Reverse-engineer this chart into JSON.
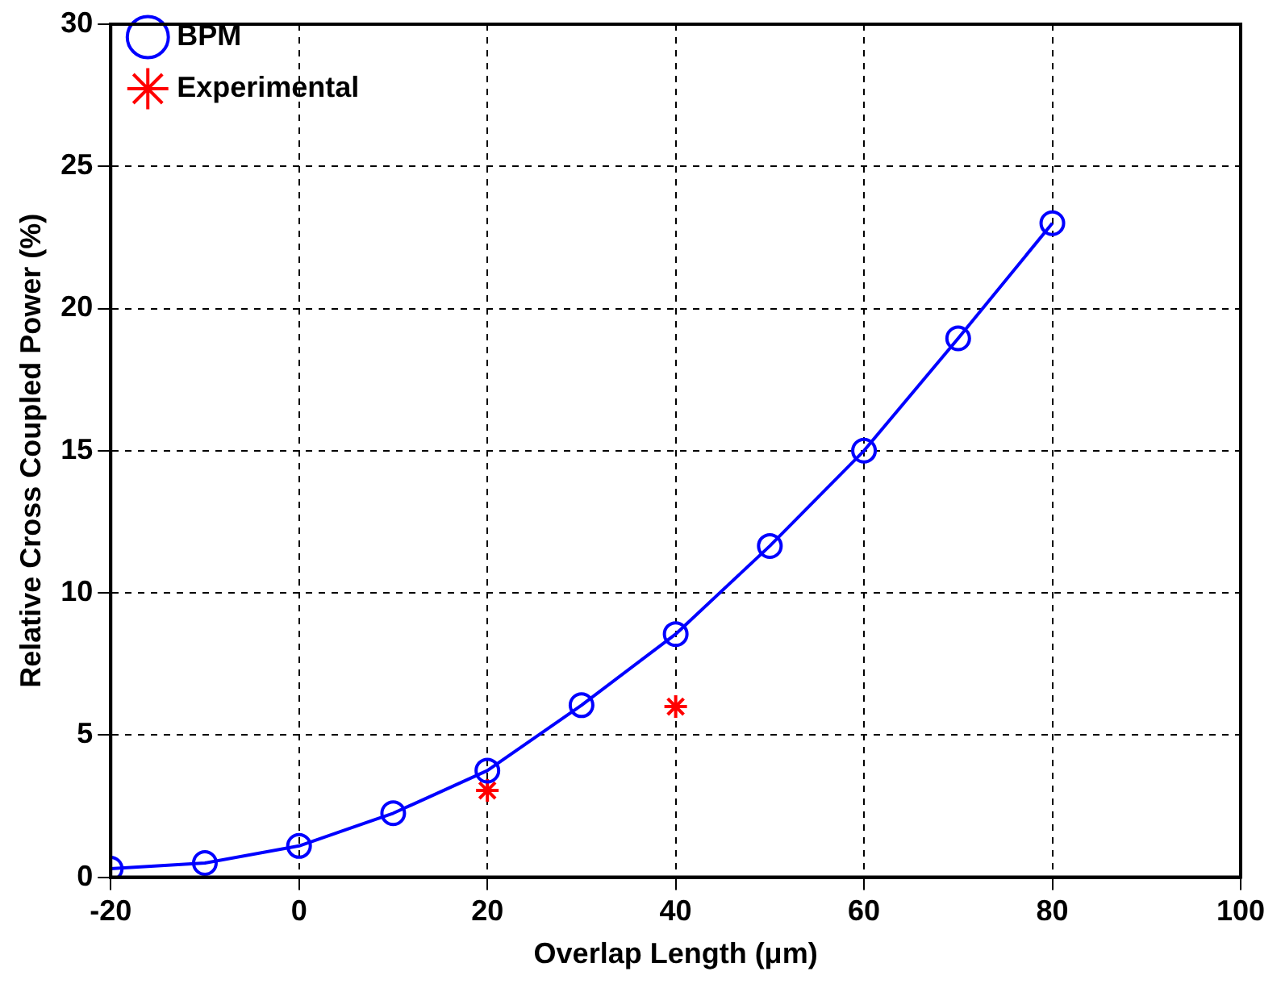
{
  "chart_data": {
    "type": "line",
    "xlabel": "Overlap Length (μm)",
    "ylabel": "Relative Cross Coupled Power (%)",
    "x": [
      -20,
      -10,
      0,
      10,
      20,
      30,
      40,
      50,
      60,
      70,
      80
    ],
    "series": [
      {
        "name": "BPM",
        "color": "#0000ff",
        "marker": "circle",
        "values": [
          0.3,
          0.5,
          1.1,
          2.25,
          3.75,
          6.05,
          8.55,
          11.65,
          15.0,
          18.95,
          23.0
        ]
      },
      {
        "name": "Experimental",
        "type": "scatter",
        "color": "#ff0000",
        "marker": "cross",
        "x": [
          20,
          40
        ],
        "values": [
          3.05,
          6.0
        ]
      }
    ],
    "xlim": [
      -20,
      100
    ],
    "xticks": [
      -20,
      0,
      20,
      40,
      60,
      80,
      100
    ],
    "ylim": [
      0,
      30
    ],
    "yticks": [
      0,
      5,
      10,
      15,
      20,
      25,
      30
    ],
    "grid": true,
    "legend": "top left",
    "line_style": "solid"
  }
}
